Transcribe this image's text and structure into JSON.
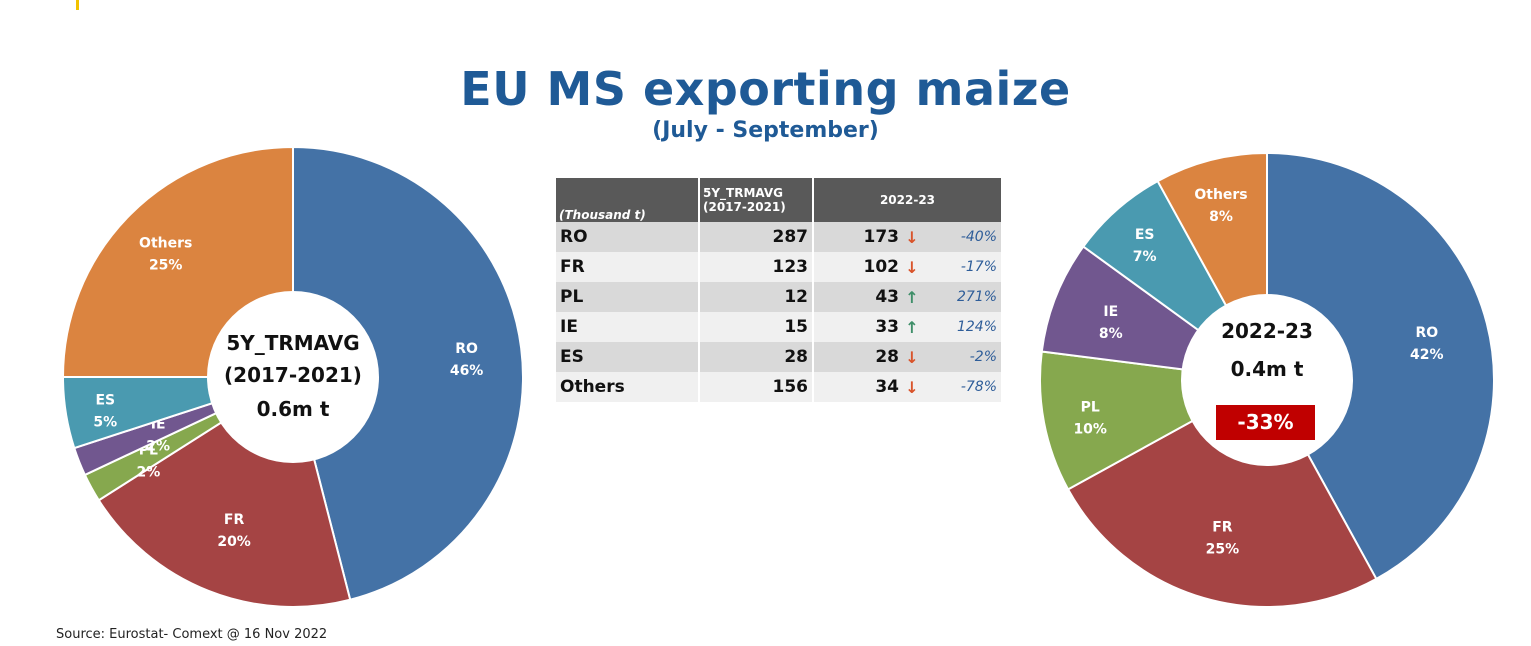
{
  "title": "EU MS exporting maize",
  "subtitle": "(July - September)",
  "source": "Source: Eurostat- Comext @ 16 Nov 2022",
  "colors": {
    "RO": "#4472a6",
    "FR": "#a54444",
    "PL": "#86a84e",
    "IE": "#71578f",
    "ES": "#4a9ab0",
    "Others": "#db8440",
    "badge": "#c00000",
    "title": "#1f5a96"
  },
  "table": {
    "unit_header": "(Thousand t)",
    "avg_header": "5Y_TRMAVG (2017-2021)",
    "current_header": "2022-23",
    "rows": [
      {
        "country": "RO",
        "avg": "287",
        "current": "173",
        "trend": "down",
        "change": "-40%"
      },
      {
        "country": "FR",
        "avg": "123",
        "current": "102",
        "trend": "down",
        "change": "-17%"
      },
      {
        "country": "PL",
        "avg": "12",
        "current": "43",
        "trend": "up",
        "change": "271%"
      },
      {
        "country": "IE",
        "avg": "15",
        "current": "33",
        "trend": "up",
        "change": "124%"
      },
      {
        "country": "ES",
        "avg": "28",
        "current": "28",
        "trend": "down",
        "change": "-2%"
      },
      {
        "country": "Others",
        "avg": "156",
        "current": "34",
        "trend": "down",
        "change": "-78%"
      }
    ]
  },
  "chart_data": [
    {
      "type": "pie",
      "center_lines": [
        "5Y_TRMAVG",
        "(2017-2021)",
        "0.6m t"
      ],
      "slices": [
        {
          "label": "RO",
          "pct_label": "46%",
          "value": 46
        },
        {
          "label": "FR",
          "pct_label": "20%",
          "value": 20
        },
        {
          "label": "PL",
          "pct_label": "2%",
          "value": 2
        },
        {
          "label": "IE",
          "pct_label": "2%",
          "value": 2
        },
        {
          "label": "ES",
          "pct_label": "5%",
          "value": 5
        },
        {
          "label": "Others",
          "pct_label": "25%",
          "value": 25
        }
      ]
    },
    {
      "type": "pie",
      "center_lines": [
        "2022-23",
        "0.4m t"
      ],
      "change_badge": "-33%",
      "slices": [
        {
          "label": "RO",
          "pct_label": "42%",
          "value": 42
        },
        {
          "label": "FR",
          "pct_label": "25%",
          "value": 25
        },
        {
          "label": "PL",
          "pct_label": "10%",
          "value": 10
        },
        {
          "label": "IE",
          "pct_label": "8%",
          "value": 8
        },
        {
          "label": "ES",
          "pct_label": "7%",
          "value": 7
        },
        {
          "label": "Others",
          "pct_label": "8%",
          "value": 8
        }
      ]
    }
  ]
}
